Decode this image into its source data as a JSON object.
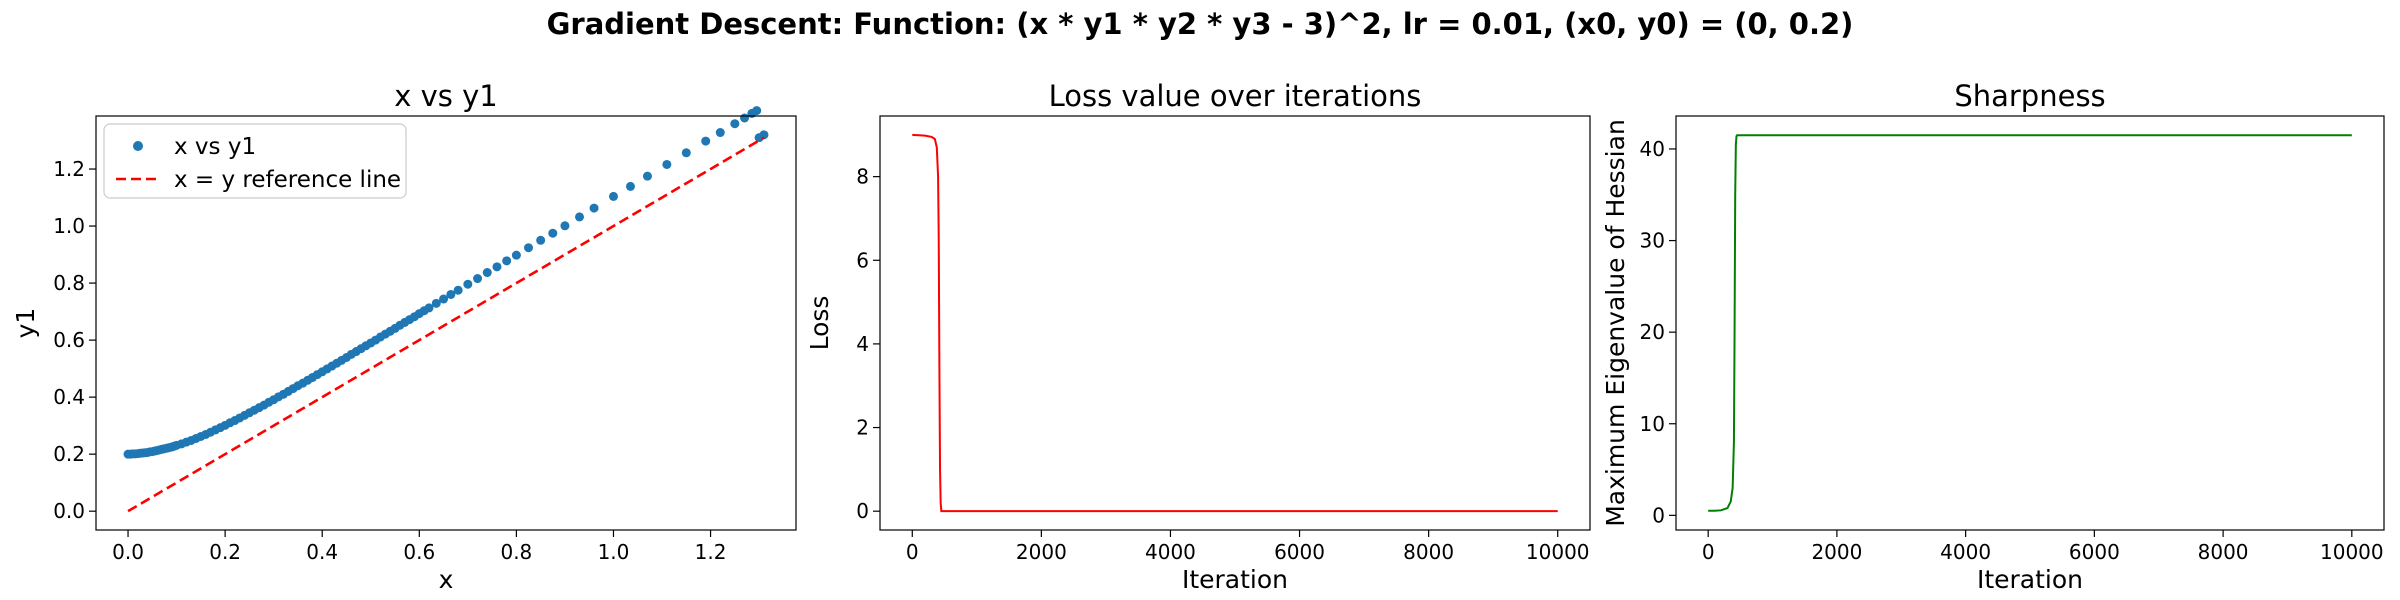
{
  "suptitle": "Gradient Descent: Function: (x * y1 * y2 * y3 - 3)^2, lr = 0.01, (x0, y0) = (0, 0.2)",
  "chart_data": [
    {
      "type": "scatter",
      "title": "x vs y1",
      "xlabel": "x",
      "ylabel": "y1",
      "xlim": [
        -0.066,
        1.376
      ],
      "ylim": [
        -0.066,
        1.386
      ],
      "xticks": [
        0.0,
        0.2,
        0.4,
        0.6,
        0.8,
        1.0,
        1.2
      ],
      "yticks": [
        0.0,
        0.2,
        0.4,
        0.6,
        0.8,
        1.0,
        1.2
      ],
      "grid": false,
      "legend_position": "upper-left",
      "series": [
        {
          "name": "x vs y1",
          "style": "markers",
          "color": "#1f77b4",
          "x": [
            0.0,
            0.005,
            0.01,
            0.015,
            0.02,
            0.025,
            0.03,
            0.035,
            0.04,
            0.045,
            0.05,
            0.055,
            0.06,
            0.065,
            0.07,
            0.075,
            0.08,
            0.085,
            0.09,
            0.095,
            0.1,
            0.11,
            0.12,
            0.13,
            0.14,
            0.15,
            0.16,
            0.17,
            0.18,
            0.19,
            0.2,
            0.21,
            0.22,
            0.23,
            0.24,
            0.25,
            0.26,
            0.27,
            0.28,
            0.29,
            0.3,
            0.31,
            0.32,
            0.33,
            0.34,
            0.35,
            0.36,
            0.37,
            0.38,
            0.39,
            0.4,
            0.41,
            0.42,
            0.43,
            0.44,
            0.45,
            0.46,
            0.47,
            0.48,
            0.49,
            0.5,
            0.51,
            0.52,
            0.53,
            0.54,
            0.55,
            0.56,
            0.57,
            0.58,
            0.59,
            0.6,
            0.61,
            0.62,
            0.635,
            0.65,
            0.665,
            0.68,
            0.7,
            0.72,
            0.74,
            0.76,
            0.78,
            0.8,
            0.825,
            0.85,
            0.875,
            0.9,
            0.93,
            0.96,
            1.0,
            1.035,
            1.07,
            1.11,
            1.15,
            1.19,
            1.22,
            1.25,
            1.27,
            1.285,
            1.295,
            1.3,
            1.31
          ],
          "y": [
            0.2,
            0.2,
            0.201,
            0.201,
            0.202,
            0.203,
            0.204,
            0.205,
            0.206,
            0.208,
            0.209,
            0.211,
            0.213,
            0.215,
            0.217,
            0.219,
            0.221,
            0.223,
            0.225,
            0.228,
            0.231,
            0.236,
            0.242,
            0.248,
            0.255,
            0.262,
            0.269,
            0.277,
            0.285,
            0.293,
            0.301,
            0.31,
            0.318,
            0.327,
            0.336,
            0.345,
            0.354,
            0.363,
            0.372,
            0.382,
            0.391,
            0.401,
            0.41,
            0.42,
            0.43,
            0.44,
            0.449,
            0.459,
            0.469,
            0.479,
            0.489,
            0.499,
            0.509,
            0.519,
            0.529,
            0.539,
            0.55,
            0.56,
            0.57,
            0.58,
            0.59,
            0.6,
            0.611,
            0.621,
            0.631,
            0.641,
            0.652,
            0.662,
            0.672,
            0.682,
            0.693,
            0.703,
            0.713,
            0.729,
            0.744,
            0.76,
            0.775,
            0.796,
            0.816,
            0.837,
            0.857,
            0.878,
            0.898,
            0.924,
            0.95,
            0.975,
            1.001,
            1.032,
            1.063,
            1.104,
            1.139,
            1.175,
            1.216,
            1.257,
            1.298,
            1.328,
            1.359,
            1.379,
            1.395,
            1.405,
            1.31,
            1.32
          ]
        },
        {
          "name": "x = y reference line",
          "style": "dashed",
          "color": "#ff0000",
          "x": [
            0.0,
            1.31
          ],
          "y": [
            0.0,
            1.31
          ]
        }
      ]
    },
    {
      "type": "line",
      "title": "Loss value over iterations",
      "xlabel": "Iteration",
      "ylabel": "Loss",
      "xlim": [
        -500,
        10500
      ],
      "ylim": [
        -0.45,
        9.45
      ],
      "xticks": [
        0,
        2000,
        4000,
        6000,
        8000,
        10000
      ],
      "yticks": [
        0,
        2,
        4,
        6,
        8
      ],
      "grid": false,
      "series": [
        {
          "color": "#ff0000",
          "x": [
            0,
            100,
            200,
            300,
            350,
            380,
            400,
            410,
            420,
            430,
            440,
            450,
            500,
            1000,
            2000,
            4000,
            6000,
            8000,
            10000
          ],
          "y": [
            9.0,
            8.99,
            8.98,
            8.95,
            8.9,
            8.7,
            8.0,
            6.5,
            3.5,
            1.0,
            0.2,
            0.0,
            0.0,
            0.0,
            0.0,
            0.0,
            0.0,
            0.0,
            0.0
          ]
        }
      ]
    },
    {
      "type": "line",
      "title": "Sharpness",
      "xlabel": "Iteration",
      "ylabel": "Maximum Eigenvalue of Hessian",
      "xlim": [
        -500,
        10500
      ],
      "ylim": [
        -1.6,
        43.6
      ],
      "xticks": [
        0,
        2000,
        4000,
        6000,
        8000,
        10000
      ],
      "yticks": [
        0,
        10,
        20,
        30,
        40
      ],
      "grid": false,
      "series": [
        {
          "color": "#008000",
          "x": [
            0,
            100,
            200,
            300,
            350,
            380,
            400,
            410,
            420,
            430,
            440,
            450,
            500,
            1000,
            2000,
            4000,
            6000,
            8000,
            10000
          ],
          "y": [
            0.5,
            0.5,
            0.55,
            0.8,
            1.5,
            3.0,
            8.0,
            20.0,
            35.0,
            40.5,
            41.4,
            41.5,
            41.5,
            41.5,
            41.5,
            41.5,
            41.5,
            41.5,
            41.5
          ]
        }
      ]
    }
  ]
}
